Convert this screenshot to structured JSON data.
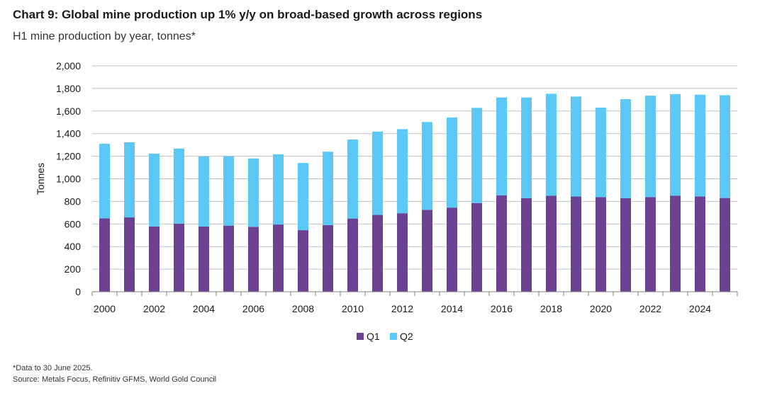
{
  "header": {
    "title": "Chart 9: Global mine production up 1% y/y on broad-based growth across regions",
    "subtitle": "H1 mine production by year, tonnes*"
  },
  "footer": {
    "note": "*Data to 30 June 2025.",
    "source": "Source: Metals Focus, Refinitiv GFMS, World Gold Council"
  },
  "colors": {
    "q1": "#6b4191",
    "q2": "#5bc8f5",
    "grid": "#bfbfbf",
    "axis": "#808080"
  },
  "chart_data": {
    "type": "bar",
    "stacked": true,
    "title": "Chart 9: Global mine production up 1% y/y on broad-based growth across regions",
    "subtitle": "H1 mine production by year, tonnes*",
    "xlabel": "",
    "ylabel": "Tonnes",
    "ylim": [
      0,
      2000
    ],
    "yticks": [
      0,
      200,
      400,
      600,
      800,
      1000,
      1200,
      1400,
      1600,
      1800,
      2000
    ],
    "ytick_labels": [
      "0",
      "200",
      "400",
      "600",
      "800",
      "1,000",
      "1,200",
      "1,400",
      "1,600",
      "1,800",
      "2,000"
    ],
    "grid": true,
    "legend_position": "bottom-center",
    "categories": [
      "2000",
      "2001",
      "2002",
      "2003",
      "2004",
      "2005",
      "2006",
      "2007",
      "2008",
      "2009",
      "2010",
      "2011",
      "2012",
      "2013",
      "2014",
      "2015",
      "2016",
      "2017",
      "2018",
      "2019",
      "2020",
      "2021",
      "2022",
      "2023",
      "2024",
      "2025"
    ],
    "xtick_labels": [
      "2000",
      "2002",
      "2004",
      "2006",
      "2008",
      "2010",
      "2012",
      "2014",
      "2016",
      "2018",
      "2020",
      "2022",
      "2024"
    ],
    "series": [
      {
        "name": "Q1",
        "values": [
          650,
          658,
          578,
          603,
          578,
          585,
          575,
          595,
          545,
          590,
          648,
          680,
          695,
          725,
          745,
          785,
          853,
          828,
          850,
          843,
          838,
          828,
          838,
          850,
          843,
          830
        ]
      },
      {
        "name": "Q2",
        "values": [
          660,
          665,
          645,
          665,
          620,
          615,
          605,
          622,
          595,
          650,
          700,
          738,
          745,
          778,
          798,
          843,
          867,
          892,
          903,
          885,
          792,
          877,
          898,
          900,
          902,
          910
        ]
      }
    ]
  }
}
